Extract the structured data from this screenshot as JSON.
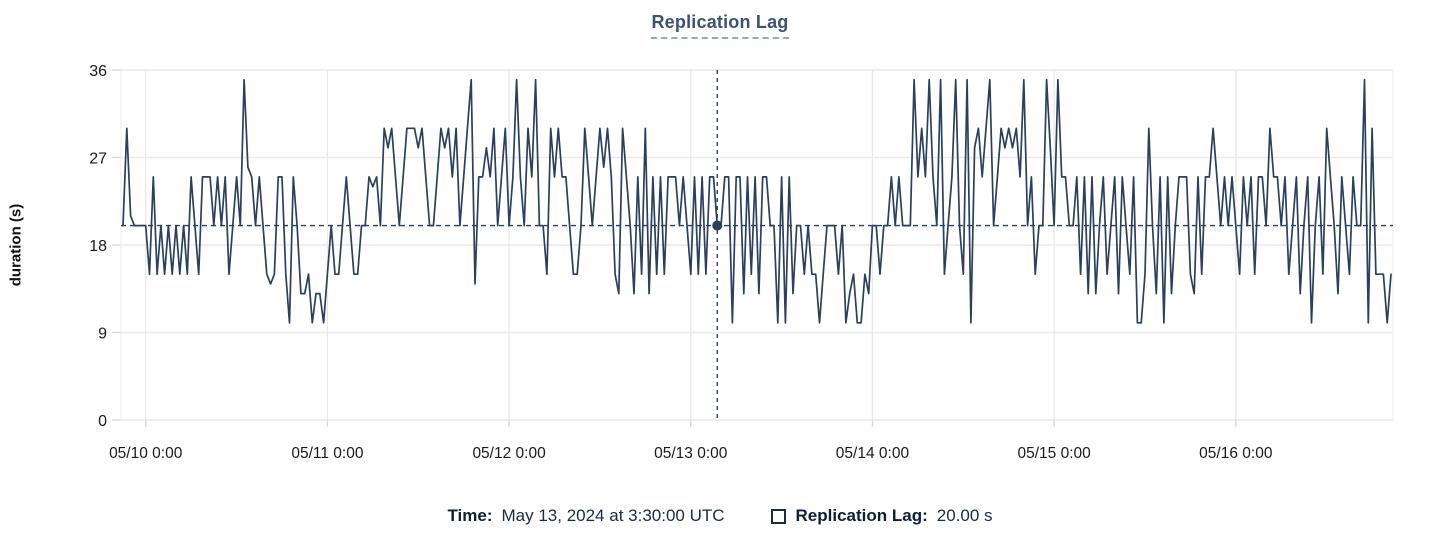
{
  "header": {
    "title": "Replication Lag"
  },
  "colors": {
    "line": "#2b3f5e",
    "title": "#3d5273",
    "grid": "#e9e9e9",
    "grid_edge": "#efefef",
    "tick_mark": "#d9d9d9",
    "tick_text": "#1a1a1a",
    "footer_text": "#16243c"
  },
  "chart_data": {
    "type": "line",
    "title": "Replication Lag",
    "xlabel": "",
    "ylabel": "duration (s)",
    "ylim": [
      0,
      36
    ],
    "y_ticks": [
      0,
      9,
      18,
      27,
      36
    ],
    "x_ticks": [
      "05/10 0:00",
      "05/11 0:00",
      "05/12 0:00",
      "05/13 0:00",
      "05/14 0:00",
      "05/15 0:00",
      "05/16 0:00"
    ],
    "x_tick_indices": [
      6,
      54,
      102,
      150,
      198,
      246,
      294
    ],
    "grid": true,
    "legend_position": "bottom",
    "hover": {
      "index": 157,
      "time": "May 13, 2024 at 3:30:00 UTC",
      "value": 20,
      "value_label": "20.00 s"
    },
    "series": [
      {
        "name": "Replication Lag",
        "unit": "s",
        "start": "2024-05-09 21:00 UTC",
        "interval_minutes": 30,
        "values": [
          20,
          30,
          21,
          20,
          20,
          20,
          20,
          15,
          25,
          15,
          20,
          15,
          20,
          15,
          20,
          15,
          20,
          15,
          25,
          20,
          15,
          25,
          25,
          25,
          20,
          25,
          20,
          25,
          15,
          20,
          25,
          20,
          35,
          26,
          25,
          20,
          25,
          20,
          15,
          14,
          15,
          25,
          25,
          15,
          10,
          25,
          20,
          13,
          13,
          15,
          10,
          13,
          13,
          10,
          15,
          20,
          15,
          15,
          20,
          25,
          20,
          15,
          15,
          20,
          20,
          25,
          24,
          25,
          20,
          30,
          28,
          30,
          25,
          20,
          25,
          30,
          30,
          30,
          28,
          30,
          25,
          20,
          20,
          25,
          30,
          28,
          30,
          25,
          30,
          20,
          25,
          30,
          35,
          14,
          25,
          25,
          28,
          25,
          30,
          20,
          25,
          30,
          20,
          25,
          35,
          25,
          20,
          30,
          25,
          35,
          20,
          20,
          15,
          30,
          25,
          30,
          25,
          25,
          20,
          15,
          15,
          20,
          30,
          25,
          20,
          25,
          30,
          26,
          30,
          25,
          15,
          13,
          30,
          25,
          20,
          13,
          25,
          15,
          30,
          13,
          25,
          15,
          25,
          15,
          25,
          25,
          25,
          20,
          25,
          20,
          15,
          25,
          15,
          25,
          15,
          25,
          25,
          20,
          20,
          25,
          25,
          10,
          25,
          25,
          13,
          25,
          15,
          25,
          13,
          25,
          25,
          20,
          20,
          10,
          25,
          10,
          25,
          13,
          20,
          20,
          15,
          20,
          15,
          15,
          10,
          15,
          20,
          20,
          20,
          15,
          20,
          10,
          13,
          15,
          10,
          10,
          15,
          13,
          20,
          20,
          15,
          20,
          20,
          25,
          20,
          25,
          20,
          20,
          20,
          35,
          25,
          30,
          25,
          35,
          25,
          20,
          35,
          15,
          20,
          25,
          35,
          20,
          15,
          35,
          10,
          28,
          30,
          25,
          30,
          35,
          20,
          25,
          30,
          28,
          30,
          28,
          30,
          25,
          35,
          20,
          25,
          15,
          20,
          20,
          35,
          28,
          20,
          35,
          25,
          25,
          20,
          20,
          25,
          15,
          25,
          13,
          25,
          13,
          20,
          25,
          15,
          20,
          25,
          13,
          25,
          20,
          15,
          25,
          10,
          10,
          15,
          30,
          20,
          13,
          25,
          10,
          25,
          13,
          20,
          25,
          25,
          25,
          15,
          13,
          25,
          15,
          25,
          25,
          30,
          25,
          20,
          25,
          20,
          25,
          20,
          15,
          25,
          20,
          25,
          15,
          25,
          25,
          20,
          30,
          25,
          25,
          20,
          25,
          15,
          20,
          25,
          13,
          20,
          25,
          10,
          20,
          25,
          15,
          30,
          25,
          20,
          13,
          25,
          20,
          15,
          25,
          20,
          20,
          35,
          10,
          30,
          15,
          15,
          15,
          10,
          15
        ]
      }
    ]
  },
  "footer": {
    "time_label": "Time:",
    "time_value": "May 13, 2024 at 3:30:00 UTC",
    "series_label": "Replication Lag:",
    "series_value": "20.00 s"
  }
}
